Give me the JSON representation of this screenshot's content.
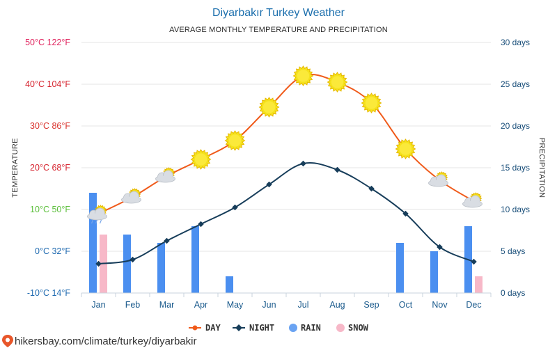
{
  "header": {
    "title": "Diyarbakır Turkey Weather",
    "subtitle": "AVERAGE MONTHLY TEMPERATURE AND PRECIPITATION"
  },
  "footer": {
    "url": "hikersbay.com/climate/turkey/diyarbakir"
  },
  "chart_data": {
    "type": "line",
    "title": "Diyarbakır Turkey Weather",
    "subtitle": "AVERAGE MONTHLY TEMPERATURE AND PRECIPITATION",
    "categories": [
      "Jan",
      "Feb",
      "Mar",
      "Apr",
      "May",
      "Jun",
      "Jul",
      "Aug",
      "Sep",
      "Oct",
      "Nov",
      "Dec"
    ],
    "y_left": {
      "label": "TEMPERATURE",
      "range": [
        -10,
        50
      ],
      "ticks": [
        {
          "value": 50,
          "label": "50°C 122°F",
          "color": "#e0245e"
        },
        {
          "value": 40,
          "label": "40°C 104°F",
          "color": "#d6242f"
        },
        {
          "value": 30,
          "label": "30°C 86°F",
          "color": "#d9302a"
        },
        {
          "value": 20,
          "label": "20°C 68°F",
          "color": "#d6242f"
        },
        {
          "value": 10,
          "label": "10°C 50°F",
          "color": "#5bbf3a"
        },
        {
          "value": 0,
          "label": "0°C 32°F",
          "color": "#1f6ab0"
        },
        {
          "value": -10,
          "label": "-10°C 14°F",
          "color": "#1f6ab0"
        }
      ]
    },
    "y_right": {
      "label": "PRECIPITATION",
      "range": [
        0,
        30
      ],
      "ticks": [
        {
          "value": 30,
          "label": "30 days"
        },
        {
          "value": 25,
          "label": "25 days"
        },
        {
          "value": 20,
          "label": "20 days"
        },
        {
          "value": 15,
          "label": "15 days"
        },
        {
          "value": 10,
          "label": "10 days"
        },
        {
          "value": 5,
          "label": "5 days"
        },
        {
          "value": 0,
          "label": "0 days"
        }
      ]
    },
    "series": [
      {
        "name": "DAY",
        "kind": "line",
        "axis": "left",
        "color": "#f05a1a",
        "values": [
          9,
          13,
          18,
          22,
          26.5,
          34.5,
          42,
          40.5,
          35.5,
          24.5,
          17,
          12
        ]
      },
      {
        "name": "NIGHT",
        "kind": "line",
        "axis": "left",
        "color": "#173d5a",
        "values": [
          -3,
          -2,
          2.5,
          6.5,
          10.5,
          16,
          21,
          19.5,
          15,
          9,
          1,
          -2.5
        ]
      },
      {
        "name": "RAIN",
        "kind": "bar",
        "axis": "right",
        "color": "#4b8ff0",
        "values": [
          12,
          7,
          6,
          8,
          2,
          0,
          0,
          0,
          0,
          6,
          5,
          8
        ]
      },
      {
        "name": "SNOW",
        "kind": "bar",
        "axis": "right",
        "color": "#f7b8c8",
        "values": [
          7,
          0,
          0,
          0,
          0,
          0,
          0,
          0,
          0,
          0,
          0,
          2
        ]
      }
    ],
    "weather_icons": [
      "cloud-sun-rain-icon",
      "cloud-sun-icon",
      "cloud-sun-icon",
      "sun-icon",
      "sun-icon",
      "sun-icon",
      "sun-icon",
      "sun-icon",
      "sun-icon",
      "sun-icon",
      "cloud-sun-icon",
      "cloud-sun-icon"
    ],
    "grid": true,
    "legend_position": "bottom-center",
    "colors": {
      "title": "#1c6fad",
      "right_axis": "#1a4f7a",
      "category": "#1a5a8c",
      "grid": "#e6e6e6",
      "sun": "#f5e21b",
      "sun_edge": "#e6b800",
      "cloud": "#d9dde3"
    }
  }
}
